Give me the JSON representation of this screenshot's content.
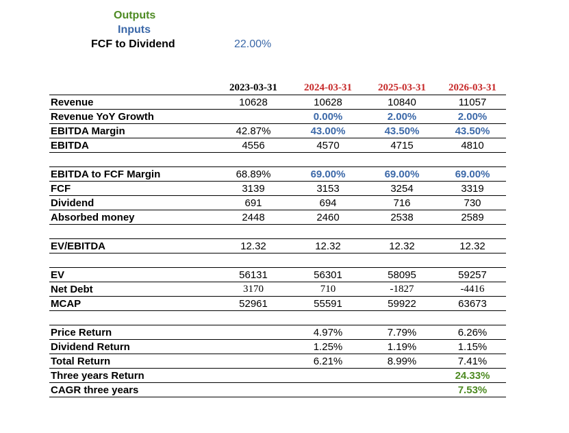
{
  "legend": {
    "outputs": "Outputs",
    "inputs": "Inputs",
    "fcf_to_dividend_label": "FCF to Dividend",
    "fcf_to_dividend_value": "22.00%"
  },
  "columns": [
    "2023-03-31",
    "2024-03-31",
    "2025-03-31",
    "2026-03-31"
  ],
  "colors": {
    "output": "#4d8a22",
    "input": "#3b68a8",
    "forecast_header": "#c62828"
  },
  "rows": {
    "revenue": {
      "label": "Revenue",
      "values": [
        "10628",
        "10628",
        "10840",
        "11057"
      ]
    },
    "revenue_yoy": {
      "label": "Revenue YoY Growth",
      "values": [
        "",
        "0.00%",
        "2.00%",
        "2.00%"
      ]
    },
    "ebitda_margin": {
      "label": "EBITDA Margin",
      "values": [
        "42.87%",
        "43.00%",
        "43.50%",
        "43.50%"
      ]
    },
    "ebitda": {
      "label": "EBITDA",
      "values": [
        "4556",
        "4570",
        "4715",
        "4810"
      ]
    },
    "ebitda_fcf_margin": {
      "label": "EBITDA to FCF Margin",
      "values": [
        "68.89%",
        "69.00%",
        "69.00%",
        "69.00%"
      ]
    },
    "fcf": {
      "label": "FCF",
      "values": [
        "3139",
        "3153",
        "3254",
        "3319"
      ]
    },
    "dividend": {
      "label": "Dividend",
      "values": [
        "691",
        "694",
        "716",
        "730"
      ]
    },
    "absorbed": {
      "label": "Absorbed money",
      "values": [
        "2448",
        "2460",
        "2538",
        "2589"
      ]
    },
    "ev_ebitda": {
      "label": "EV/EBITDA",
      "values": [
        "12.32",
        "12.32",
        "12.32",
        "12.32"
      ]
    },
    "ev": {
      "label": "EV",
      "values": [
        "56131",
        "56301",
        "58095",
        "59257"
      ]
    },
    "net_debt": {
      "label": "Net Debt",
      "values": [
        "3170",
        "710",
        "-1827",
        "-4416"
      ]
    },
    "mcap": {
      "label": "MCAP",
      "values": [
        "52961",
        "55591",
        "59922",
        "63673"
      ]
    },
    "price_return": {
      "label": "Price Return",
      "values": [
        "",
        "4.97%",
        "7.79%",
        "6.26%"
      ]
    },
    "dividend_return": {
      "label": "Dividend Return",
      "values": [
        "",
        "1.25%",
        "1.19%",
        "1.15%"
      ]
    },
    "total_return": {
      "label": "Total Return",
      "values": [
        "",
        "6.21%",
        "8.99%",
        "7.41%"
      ]
    },
    "three_year_return": {
      "label": "Three years Return",
      "values": [
        "",
        "",
        "",
        "24.33%"
      ]
    },
    "cagr": {
      "label": "CAGR three years",
      "values": [
        "",
        "",
        "",
        "7.53%"
      ]
    }
  }
}
